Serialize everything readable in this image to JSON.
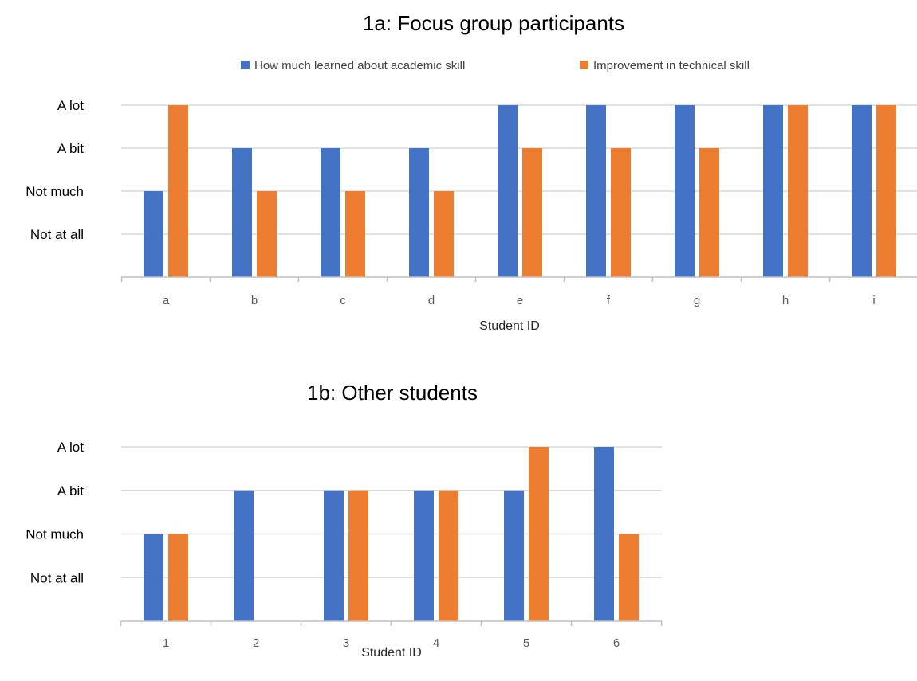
{
  "chart_data": [
    {
      "type": "bar",
      "title": "1a: Focus group participants",
      "xlabel": "Student ID",
      "ylabel": "",
      "y_tick_labels": [
        "Not at all",
        "Not much",
        "A bit",
        "A lot"
      ],
      "ylim": [
        0,
        4
      ],
      "grid": true,
      "legend_position": "top",
      "categories": [
        "a",
        "b",
        "c",
        "d",
        "e",
        "f",
        "g",
        "h",
        "i"
      ],
      "series": [
        {
          "name": "How much learned about academic skill",
          "color": "#4472c4",
          "values": [
            2,
            3,
            3,
            3,
            4,
            4,
            4,
            4,
            4
          ]
        },
        {
          "name": "Improvement in technical skill",
          "color": "#ed7d31",
          "values": [
            4,
            2,
            2,
            2,
            3,
            3,
            3,
            4,
            4
          ]
        }
      ]
    },
    {
      "type": "bar",
      "title": "1b: Other students",
      "xlabel": "Student ID",
      "ylabel": "",
      "y_tick_labels": [
        "Not at all",
        "Not much",
        "A bit",
        "A lot"
      ],
      "ylim": [
        0,
        4
      ],
      "grid": true,
      "categories": [
        "1",
        "2",
        "3",
        "4",
        "5",
        "6"
      ],
      "series": [
        {
          "color": "#4472c4",
          "values": [
            2,
            3,
            3,
            3,
            3,
            4
          ]
        },
        {
          "color": "#ed7d31",
          "values": [
            2,
            0,
            3,
            3,
            4,
            2
          ]
        }
      ]
    }
  ]
}
